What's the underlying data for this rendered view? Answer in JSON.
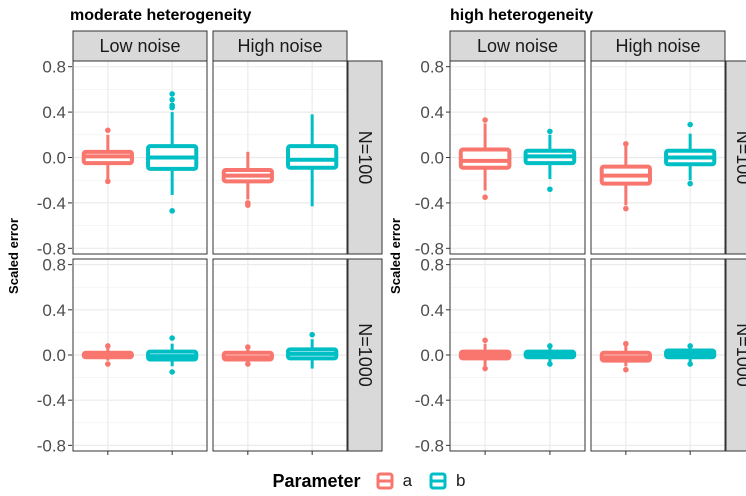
{
  "colors": {
    "a": "#F8766D",
    "b": "#00BFC4",
    "strip_fill": "#D9D9D9",
    "strip_border": "#333333"
  },
  "chart_data": [
    {
      "type": "box",
      "title": "moderate heterogeneity",
      "ylabel": "Scaled error",
      "columns": [
        "Low noise",
        "High noise"
      ],
      "rows": [
        "N=100",
        "N=1000"
      ],
      "ylim": [
        -0.85,
        0.85
      ],
      "yticks": [
        -0.8,
        -0.4,
        0.0,
        0.4,
        0.8
      ],
      "ytick_labels": [
        "-0.8",
        "-0.4",
        "0.0",
        "0.4",
        "0.8"
      ],
      "grid": true,
      "panels": [
        {
          "row": "N=100",
          "col": "Low noise",
          "boxes": [
            {
              "parameter": "a",
              "min": -0.2,
              "q1": -0.05,
              "median": 0.01,
              "q3": 0.05,
              "max": 0.2,
              "outliers": [
                0.24,
                -0.21
              ]
            },
            {
              "parameter": "b",
              "min": -0.33,
              "q1": -0.1,
              "median": 0.0,
              "q3": 0.1,
              "max": 0.4,
              "outliers": [
                0.56,
                0.51,
                0.46,
                0.44,
                -0.47
              ]
            }
          ]
        },
        {
          "row": "N=100",
          "col": "High noise",
          "boxes": [
            {
              "parameter": "a",
              "min": -0.37,
              "q1": -0.21,
              "median": -0.16,
              "q3": -0.11,
              "max": 0.05,
              "outliers": [
                -0.4,
                -0.42
              ]
            },
            {
              "parameter": "b",
              "min": -0.43,
              "q1": -0.09,
              "median": -0.02,
              "q3": 0.1,
              "max": 0.38,
              "outliers": []
            }
          ]
        },
        {
          "row": "N=1000",
          "col": "Low noise",
          "boxes": [
            {
              "parameter": "a",
              "min": -0.05,
              "q1": -0.02,
              "median": 0.0,
              "q3": 0.02,
              "max": 0.06,
              "outliers": [
                0.08,
                -0.08
              ]
            },
            {
              "parameter": "b",
              "min": -0.1,
              "q1": -0.04,
              "median": -0.01,
              "q3": 0.03,
              "max": 0.1,
              "outliers": [
                0.15,
                -0.15
              ]
            }
          ]
        },
        {
          "row": "N=1000",
          "col": "High noise",
          "boxes": [
            {
              "parameter": "a",
              "min": -0.06,
              "q1": -0.04,
              "median": -0.02,
              "q3": 0.02,
              "max": 0.05,
              "outliers": [
                0.07,
                -0.08
              ]
            },
            {
              "parameter": "b",
              "min": -0.12,
              "q1": -0.03,
              "median": 0.01,
              "q3": 0.05,
              "max": 0.14,
              "outliers": [
                0.18
              ]
            }
          ]
        }
      ]
    },
    {
      "type": "box",
      "title": "high heterogeneity",
      "ylabel": "Scaled error",
      "columns": [
        "Low noise",
        "High noise"
      ],
      "rows": [
        "N=100",
        "N=1000"
      ],
      "ylim": [
        -0.85,
        0.85
      ],
      "yticks": [
        -0.8,
        -0.4,
        0.0,
        0.4,
        0.8
      ],
      "ytick_labels": [
        "-0.8",
        "-0.4",
        "0.0",
        "0.4",
        "0.8"
      ],
      "grid": true,
      "panels": [
        {
          "row": "N=100",
          "col": "Low noise",
          "boxes": [
            {
              "parameter": "a",
              "min": -0.29,
              "q1": -0.09,
              "median": -0.03,
              "q3": 0.07,
              "max": 0.3,
              "outliers": [
                0.33,
                -0.35
              ]
            },
            {
              "parameter": "b",
              "min": -0.19,
              "q1": -0.05,
              "median": 0.01,
              "q3": 0.06,
              "max": 0.2,
              "outliers": [
                0.23,
                -0.28
              ]
            }
          ]
        },
        {
          "row": "N=100",
          "col": "High noise",
          "boxes": [
            {
              "parameter": "a",
              "min": -0.42,
              "q1": -0.23,
              "median": -0.16,
              "q3": -0.08,
              "max": 0.1,
              "outliers": [
                -0.45,
                0.12
              ]
            },
            {
              "parameter": "b",
              "min": -0.2,
              "q1": -0.06,
              "median": 0.0,
              "q3": 0.06,
              "max": 0.21,
              "outliers": [
                0.29,
                -0.23
              ]
            }
          ]
        },
        {
          "row": "N=1000",
          "col": "Low noise",
          "boxes": [
            {
              "parameter": "a",
              "min": -0.1,
              "q1": -0.03,
              "median": 0.0,
              "q3": 0.03,
              "max": 0.1,
              "outliers": [
                0.13,
                -0.12
              ]
            },
            {
              "parameter": "b",
              "min": -0.06,
              "q1": -0.02,
              "median": 0.0,
              "q3": 0.03,
              "max": 0.06,
              "outliers": [
                0.08,
                -0.08
              ]
            }
          ]
        },
        {
          "row": "N=1000",
          "col": "High noise",
          "boxes": [
            {
              "parameter": "a",
              "min": -0.1,
              "q1": -0.05,
              "median": -0.02,
              "q3": 0.02,
              "max": 0.08,
              "outliers": [
                0.1,
                -0.13
              ]
            },
            {
              "parameter": "b",
              "min": -0.06,
              "q1": -0.02,
              "median": 0.01,
              "q3": 0.04,
              "max": 0.06,
              "outliers": [
                0.08,
                -0.08
              ]
            }
          ]
        }
      ]
    }
  ],
  "legend": {
    "title": "Parameter",
    "items": [
      {
        "key": "a",
        "label": "a"
      },
      {
        "key": "b",
        "label": "b"
      }
    ]
  }
}
